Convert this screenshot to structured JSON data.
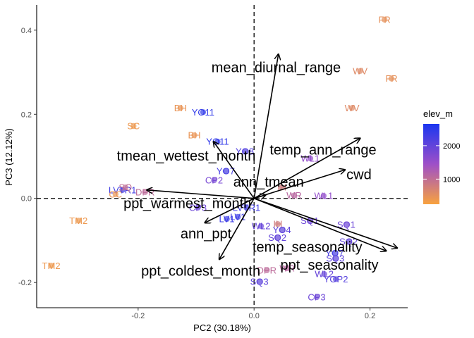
{
  "chart_data": {
    "type": "scatter",
    "subtype": "pca-biplot",
    "xlabel": "PC2 (30.18%)",
    "ylabel": "PC3 (12.12%)",
    "xlim": [
      -0.375,
      0.265
    ],
    "ylim": [
      -0.26,
      0.46
    ],
    "x_ticks": [
      -0.2,
      0.0,
      0.2
    ],
    "x_tick_labels": [
      "-0.2",
      "0.0",
      "0.2"
    ],
    "y_ticks": [
      -0.2,
      0.0,
      0.2,
      0.4
    ],
    "y_tick_labels": [
      "-0.2",
      "0.0",
      "0.2",
      "0.4"
    ],
    "reference_lines": {
      "x": 0,
      "y": 0,
      "style": "dashed"
    },
    "grid": false,
    "legend": {
      "title": "elev_m",
      "placement": "right",
      "type": "colorbar",
      "range": [
        250,
        2650
      ],
      "ticks": [
        1000,
        2000
      ],
      "tick_labels": [
        "1000",
        "2000"
      ],
      "low_color": "#F8A23E",
      "high_color": "#1B36F0"
    },
    "points": [
      {
        "label": "FR",
        "x": 0.225,
        "y": 0.425,
        "elev": 500
      },
      {
        "label": "WV",
        "x": 0.183,
        "y": 0.303,
        "elev": 600
      },
      {
        "label": "FR",
        "x": 0.237,
        "y": 0.285,
        "elev": 500
      },
      {
        "label": "WV",
        "x": 0.169,
        "y": 0.215,
        "elev": 600
      },
      {
        "label": "BH",
        "x": -0.127,
        "y": 0.215,
        "elev": 450
      },
      {
        "label": "YO11",
        "x": -0.088,
        "y": 0.205,
        "elev": 2450
      },
      {
        "label": "SC",
        "x": -0.208,
        "y": 0.172,
        "elev": 400
      },
      {
        "label": "BH",
        "x": -0.103,
        "y": 0.15,
        "elev": 450
      },
      {
        "label": "YO11",
        "x": -0.063,
        "y": 0.135,
        "elev": 2450
      },
      {
        "label": "YO8",
        "x": -0.016,
        "y": 0.112,
        "elev": 2150
      },
      {
        "label": "WL1",
        "x": 0.097,
        "y": 0.095,
        "elev": 1550
      },
      {
        "label": "YO7",
        "x": -0.049,
        "y": 0.065,
        "elev": 2250
      },
      {
        "label": "CP2",
        "x": -0.069,
        "y": 0.043,
        "elev": 1800
      },
      {
        "label": "LVTR1",
        "x": -0.227,
        "y": 0.02,
        "elev": 2300
      },
      {
        "label": "SQ",
        "x": -0.222,
        "y": 0.026,
        "elev": 1000
      },
      {
        "label": "CC",
        "x": -0.239,
        "y": 0.01,
        "elev": 450
      },
      {
        "label": "DPR",
        "x": -0.188,
        "y": 0.015,
        "elev": 1050
      },
      {
        "label": "IH",
        "x": 0.048,
        "y": 0.026,
        "elev": 800
      },
      {
        "label": "WR",
        "x": 0.069,
        "y": 0.007,
        "elev": 1100
      },
      {
        "label": "WL1",
        "x": 0.12,
        "y": 0.006,
        "elev": 1550
      },
      {
        "label": "CP3",
        "x": -0.097,
        "y": -0.022,
        "elev": 1900
      },
      {
        "label": "LVTR1",
        "x": -0.013,
        "y": -0.022,
        "elev": 2300
      },
      {
        "label": "LV1",
        "x": -0.028,
        "y": -0.044,
        "elev": 2350
      },
      {
        "label": "LV1",
        "x": -0.047,
        "y": -0.049,
        "elev": 2350
      },
      {
        "label": "SQ1",
        "x": 0.096,
        "y": -0.053,
        "elev": 1900
      },
      {
        "label": "SQ1",
        "x": 0.159,
        "y": -0.062,
        "elev": 1900
      },
      {
        "label": "WL2",
        "x": 0.012,
        "y": -0.066,
        "elev": 1950
      },
      {
        "label": "IH",
        "x": 0.041,
        "y": -0.061,
        "elev": 800
      },
      {
        "label": "YO4",
        "x": 0.048,
        "y": -0.075,
        "elev": 2050
      },
      {
        "label": "SQ2",
        "x": 0.04,
        "y": -0.093,
        "elev": 2000
      },
      {
        "label": "SQ2",
        "x": 0.163,
        "y": -0.103,
        "elev": 2000
      },
      {
        "label": "YO7",
        "x": 0.139,
        "y": -0.13,
        "elev": 2250
      },
      {
        "label": "SQ3",
        "x": 0.14,
        "y": -0.143,
        "elev": 2050
      },
      {
        "label": "DPR",
        "x": 0.022,
        "y": -0.171,
        "elev": 1050
      },
      {
        "label": "WR",
        "x": 0.057,
        "y": -0.166,
        "elev": 1100
      },
      {
        "label": "WL2",
        "x": 0.121,
        "y": -0.18,
        "elev": 1950
      },
      {
        "label": "YOP2",
        "x": 0.141,
        "y": -0.192,
        "elev": 2100
      },
      {
        "label": "SQ3",
        "x": 0.009,
        "y": -0.198,
        "elev": 2050
      },
      {
        "label": "CP3",
        "x": 0.108,
        "y": -0.235,
        "elev": 1900
      },
      {
        "label": "TM2",
        "x": -0.303,
        "y": -0.053,
        "elev": 400
      },
      {
        "label": "TM2",
        "x": -0.35,
        "y": -0.16,
        "elev": 400
      }
    ],
    "vectors": [
      {
        "label": "mean_diurnal_range",
        "x": 0.042,
        "y": 0.343,
        "lx": 0.038,
        "ly": 0.312
      },
      {
        "label": "temp_ann_range",
        "x": 0.183,
        "y": 0.143,
        "lx": 0.119,
        "ly": 0.116
      },
      {
        "label": "cwd",
        "x": 0.157,
        "y": 0.068,
        "lx": 0.181,
        "ly": 0.057
      },
      {
        "label": "ann_tmean",
        "x": 0.02,
        "y": 0.008,
        "lx": 0.025,
        "ly": 0.04
      },
      {
        "label": "tmean_wettest_month",
        "x": -0.07,
        "y": 0.135,
        "lx": -0.117,
        "ly": 0.102
      },
      {
        "label": "ppt_warmest_month",
        "x": -0.185,
        "y": 0.02,
        "lx": -0.115,
        "ly": -0.011
      },
      {
        "label": "ann_ppt",
        "x": -0.085,
        "y": -0.058,
        "lx": -0.083,
        "ly": -0.083
      },
      {
        "label": "ppt_coldest_month",
        "x": -0.06,
        "y": -0.145,
        "lx": -0.092,
        "ly": -0.172
      },
      {
        "label": "temp_seasonality",
        "x": 0.228,
        "y": -0.125,
        "lx": 0.092,
        "ly": -0.115
      },
      {
        "label": "ppt_seasonality",
        "x": 0.247,
        "y": -0.118,
        "lx": 0.13,
        "ly": -0.158
      }
    ]
  }
}
